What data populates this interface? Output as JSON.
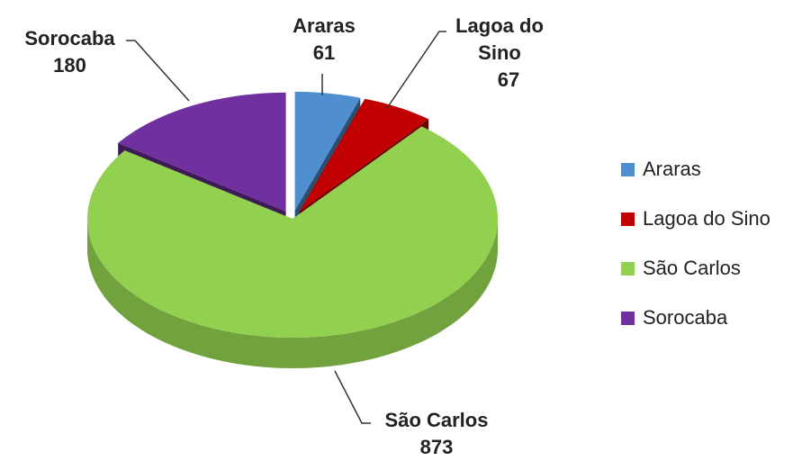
{
  "chart_data": {
    "type": "pie3d",
    "categories": [
      "Araras",
      "Lagoa do Sino",
      "São Carlos",
      "Sorocaba"
    ],
    "values": [
      61,
      67,
      873,
      180
    ],
    "colors": [
      "#4f8fd0",
      "#c00000",
      "#92d050",
      "#7030a0"
    ],
    "legend": "right"
  }
}
